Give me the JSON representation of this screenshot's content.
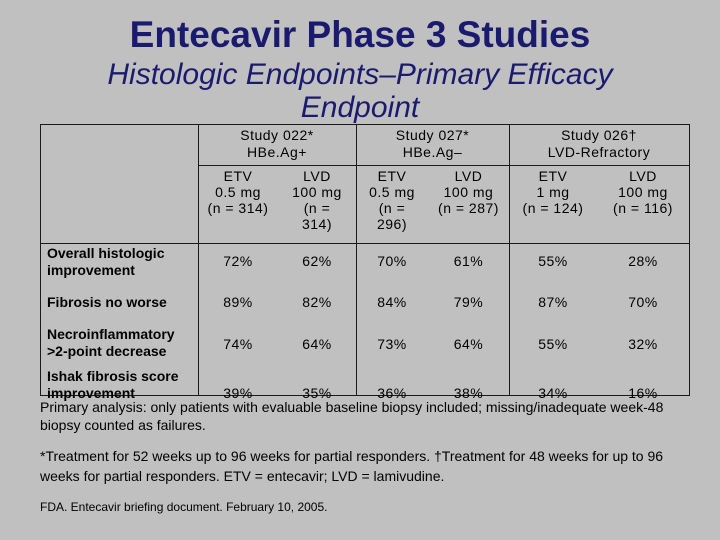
{
  "title": "Entecavir Phase 3 Studies",
  "subtitle": "Histologic Endpoints–Primary Efficacy Endpoint",
  "groups": [
    {
      "study": "Study 022*",
      "population": "HBe.Ag+"
    },
    {
      "study": "Study 027*",
      "population": "HBe.Ag–"
    },
    {
      "study": "Study 026†",
      "population": "LVD-Refractory"
    }
  ],
  "arms": [
    {
      "drug": "ETV",
      "dose": "0.5 mg",
      "n": "(n = 314)"
    },
    {
      "drug": "LVD",
      "dose": "100 mg",
      "n": "(n = 314)"
    },
    {
      "drug": "ETV",
      "dose": "0.5 mg",
      "n": "(n = 296)"
    },
    {
      "drug": "LVD",
      "dose": "100 mg",
      "n": "(n = 287)"
    },
    {
      "drug": "ETV",
      "dose": "1 mg",
      "n": "(n = 124)"
    },
    {
      "drug": "LVD",
      "dose": "100 mg",
      "n": "(n = 116)"
    }
  ],
  "rows": [
    {
      "label": "Overall histologic improvement",
      "values": [
        "72%",
        "62%",
        "70%",
        "61%",
        "55%",
        "28%"
      ]
    },
    {
      "label": "Fibrosis no worse",
      "values": [
        "89%",
        "82%",
        "84%",
        "79%",
        "87%",
        "70%"
      ]
    },
    {
      "label": "Necroinflammatory >2-point decrease",
      "values": [
        "74%",
        "64%",
        "73%",
        "64%",
        "55%",
        "32%"
      ]
    },
    {
      "label": "Ishak fibrosis score improvement",
      "values": [
        "39%",
        "35%",
        "36%",
        "38%",
        "34%",
        "16%"
      ]
    }
  ],
  "footnotes": {
    "biopsy": "Primary analysis: only patients with evaluable baseline biopsy included; missing/inadequate week-48 biopsy counted as failures.",
    "treatment": "*Treatment for 52 weeks up to 96 weeks for partial responders. †Treatment for 48 weeks for up to 96 weeks for partial responders. ETV = entecavir; LVD = lamivudine.",
    "source": "FDA. Entecavir briefing document. February 10, 2005."
  }
}
